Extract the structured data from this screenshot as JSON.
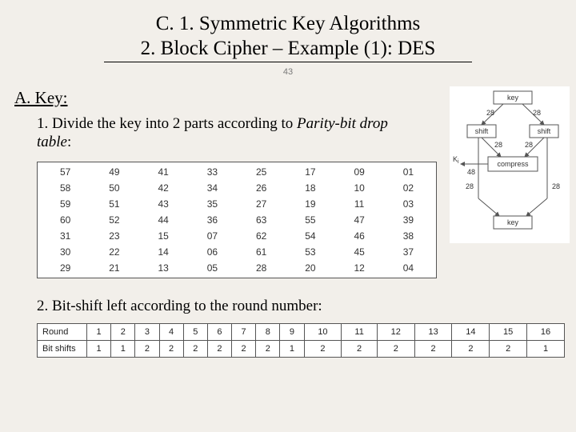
{
  "title": {
    "line1": "C. 1. Symmetric Key Algorithms",
    "line2": "2. Block Cipher – Example (1): DES"
  },
  "slide_number": "43",
  "section_a": "A. Key:",
  "step1_pre": "1. Divide the key into 2 parts according to ",
  "step1_italic": "Parity-bit drop table",
  "step1_post": ":",
  "parity_table": {
    "type": "table",
    "columns": 8,
    "font_size": 12,
    "cell_color": "#333333",
    "border_color": "#555555",
    "background": "#ffffff",
    "rows": [
      [
        "57",
        "49",
        "41",
        "33",
        "25",
        "17",
        "09",
        "01"
      ],
      [
        "58",
        "50",
        "42",
        "34",
        "26",
        "18",
        "10",
        "02"
      ],
      [
        "59",
        "51",
        "43",
        "35",
        "27",
        "19",
        "11",
        "03"
      ],
      [
        "60",
        "52",
        "44",
        "36",
        "63",
        "55",
        "47",
        "39"
      ],
      [
        "31",
        "23",
        "15",
        "07",
        "62",
        "54",
        "46",
        "38"
      ],
      [
        "30",
        "22",
        "14",
        "06",
        "61",
        "53",
        "45",
        "37"
      ],
      [
        "29",
        "21",
        "13",
        "05",
        "28",
        "20",
        "12",
        "04"
      ]
    ]
  },
  "step2": "2. Bit-shift left according to the round number:",
  "shift_table": {
    "type": "table",
    "row_headers": [
      "Round",
      "Bit shifts"
    ],
    "font_size": 11,
    "border_color": "#555555",
    "background": "#ffffff",
    "rounds": [
      "1",
      "2",
      "3",
      "4",
      "5",
      "6",
      "7",
      "8",
      "9",
      "10",
      "11",
      "12",
      "13",
      "14",
      "15",
      "16"
    ],
    "shifts": [
      "1",
      "1",
      "2",
      "2",
      "2",
      "2",
      "2",
      "2",
      "1",
      "2",
      "2",
      "2",
      "2",
      "2",
      "2",
      "1"
    ]
  },
  "diagram": {
    "type": "flowchart",
    "background": "#ffffff",
    "stroke": "#555555",
    "labels": {
      "key_top": "key",
      "n28": "28",
      "shift_l": "shift",
      "shift_r": "shift",
      "compress": "compress",
      "ki": "K",
      "ki_sub": "i",
      "n48": "48",
      "key_bot": "key"
    }
  }
}
